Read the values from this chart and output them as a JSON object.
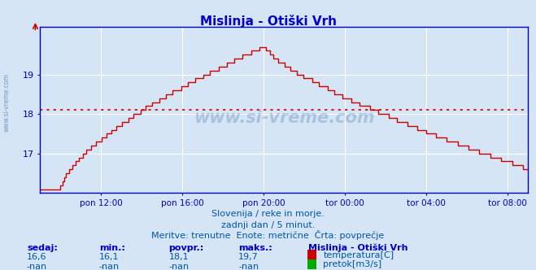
{
  "title": "Mislinja - Otiški Vrh",
  "background_color": "#d5e5f5",
  "plot_bg_color": "#d5e5f5",
  "line_color": "#cc0000",
  "avg_line_value": 18.1,
  "x_labels": [
    "pon 12:00",
    "pon 16:00",
    "pon 20:00",
    "tor 00:00",
    "tor 04:00",
    "tor 08:00"
  ],
  "ylim_min": 16.0,
  "ylim_max": 20.2,
  "yticks": [
    17,
    18,
    19
  ],
  "subtitle1": "Slovenija / reke in morje.",
  "subtitle2": "zadnji dan / 5 minut.",
  "subtitle3": "Meritve: trenutne  Enote: metrične  Črta: povprečje",
  "footer_labels": [
    "sedaj:",
    "min.:",
    "povpr.:",
    "maks.:"
  ],
  "footer_vals1": [
    "16,6",
    "16,1",
    "18,1",
    "19,7"
  ],
  "footer_vals2": [
    "-nan",
    "-nan",
    "-nan",
    "-nan"
  ],
  "legend_title": "Mislinja - Otiški Vrh",
  "legend_item1": "temperatura[C]",
  "legend_item2": "pretok[m3/s]",
  "legend_color1": "#cc0000",
  "legend_color2": "#00aa00",
  "watermark": "www.si-vreme.com",
  "watermark_side": "www.si-vreme.com",
  "grid_color": "#ffffff",
  "axis_color": "#0000cc",
  "text_color": "#0000bb",
  "label_color": "#0000cc",
  "val_color": "#0055aa"
}
